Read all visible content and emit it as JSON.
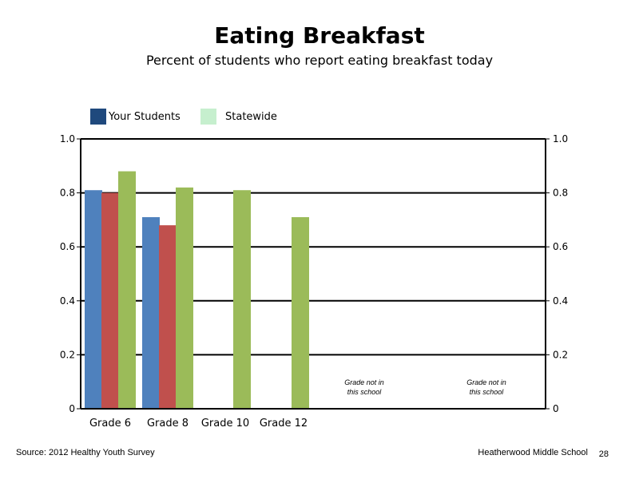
{
  "chart_data": {
    "type": "bar",
    "title": "Eating Breakfast",
    "subtitle": "Percent of students who report eating breakfast today",
    "categories": [
      "Grade 6",
      "Grade 8",
      "Grade 10",
      "Grade 12"
    ],
    "series": [
      {
        "name": "Your Students",
        "values": [
          0.81,
          0.71,
          null,
          null
        ],
        "color": "#4f81bd"
      },
      {
        "name": "",
        "values": [
          0.8,
          0.68,
          null,
          null
        ],
        "color": "#c0504d"
      },
      {
        "name": "Statewide",
        "values": [
          0.88,
          0.82,
          0.81,
          0.71
        ],
        "color": "#9bbb59"
      }
    ],
    "legend": [
      {
        "label": "Your Students",
        "color": "#1f497d"
      },
      {
        "label": "Statewide",
        "color": "#c6efce"
      }
    ],
    "legend_position": "top-left",
    "ylim": [
      0,
      1
    ],
    "yticks": [
      "0",
      "0.2",
      "0.4",
      "0.6",
      "0.8",
      "1.0"
    ],
    "grid": true,
    "annotations": [
      {
        "line1": "Grade not in",
        "line2": "this school"
      },
      {
        "line1": "Grade not in",
        "line2": "this school"
      }
    ]
  },
  "footer": {
    "source": "Source: 2012 Healthy Youth Survey",
    "school": "Heatherwood Middle  School",
    "page": "28"
  }
}
